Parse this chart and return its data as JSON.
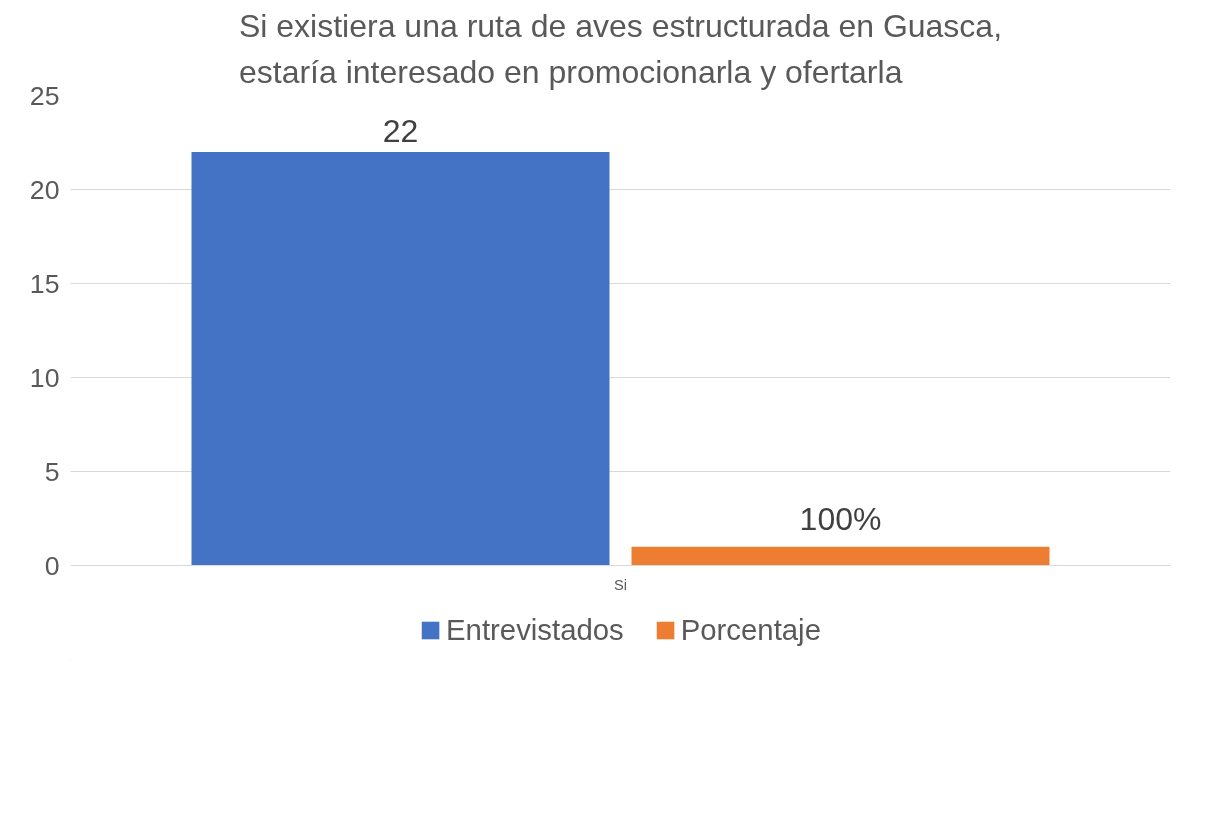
{
  "chart_data": {
    "type": "bar",
    "title": "Si existiera una ruta de aves estructurada en Guasca,\nestaría interesado en promocionarla y ofertarla",
    "categories": [
      "Si"
    ],
    "series": [
      {
        "name": "Entrevistados",
        "color": "#4472c4",
        "values": [
          22
        ],
        "value_labels": [
          "22"
        ]
      },
      {
        "name": "Porcentaje",
        "color": "#ed7d31",
        "values": [
          1
        ],
        "value_labels": [
          "100%"
        ]
      }
    ],
    "ylim": [
      0,
      25
    ],
    "yticks": [
      0,
      5,
      10,
      15,
      20,
      25
    ],
    "grid": "y",
    "legend": "bottom"
  }
}
